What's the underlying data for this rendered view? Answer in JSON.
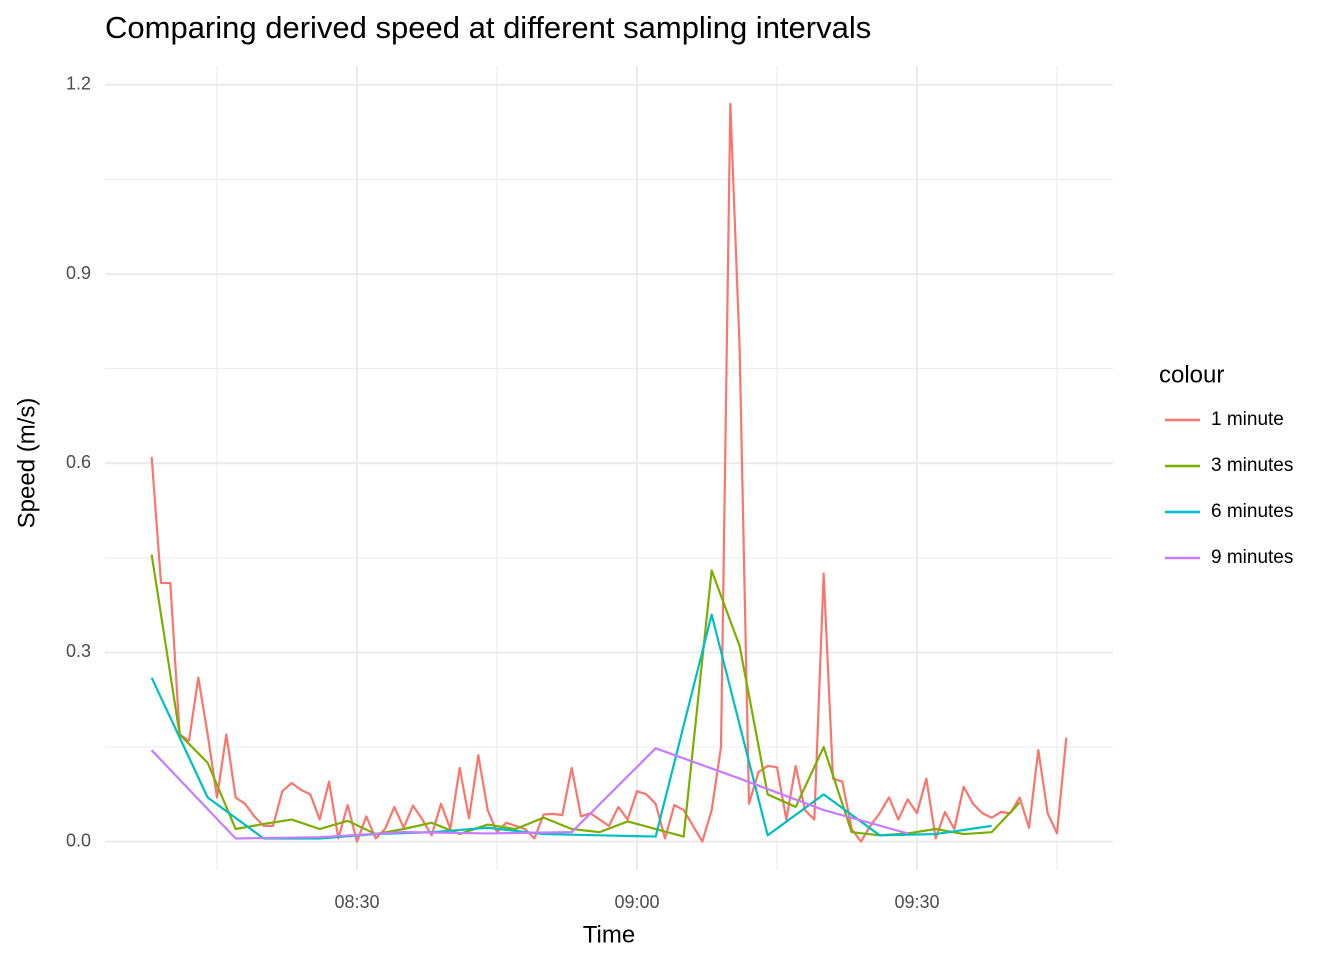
{
  "chart_data": {
    "type": "line",
    "title": "Comparing derived speed at different sampling intervals",
    "x_label": "Time",
    "y_label": "Speed (m/s)",
    "legend_title": "colour",
    "legend": "right",
    "grid": true,
    "xlim": [
      "08:03",
      "09:51"
    ],
    "xticks": [
      "08:30",
      "09:00",
      "09:30"
    ],
    "ylim": [
      -0.045,
      1.23
    ],
    "yticks": [
      {
        "value": 0,
        "label": "0.0"
      },
      0.3,
      0.6,
      0.9,
      1.2
    ],
    "series": [
      {
        "name": "1 minute",
        "color": "#f8766d",
        "x": [
          "08:08",
          "08:09",
          "08:10",
          "08:11",
          "08:12",
          "08:13",
          "08:14",
          "08:15",
          "08:16",
          "08:17",
          "08:18",
          "08:19",
          "08:20",
          "08:21",
          "08:22",
          "08:23",
          "08:24",
          "08:25",
          "08:26",
          "08:27",
          "08:28",
          "08:29",
          "08:30",
          "08:31",
          "08:32",
          "08:33",
          "08:34",
          "08:35",
          "08:36",
          "08:37",
          "08:38",
          "08:39",
          "08:40",
          "08:41",
          "08:42",
          "08:43",
          "08:44",
          "08:45",
          "08:46",
          "08:47",
          "08:48",
          "08:49",
          "08:50",
          "08:51",
          "08:52",
          "08:53",
          "08:54",
          "08:55",
          "08:56",
          "08:57",
          "08:58",
          "08:59",
          "09:00",
          "09:01",
          "09:02",
          "09:03",
          "09:04",
          "09:05",
          "09:06",
          "09:07",
          "09:08",
          "09:09",
          "09:10",
          "09:11",
          "09:12",
          "09:13",
          "09:14",
          "09:15",
          "09:16",
          "09:17",
          "09:18",
          "09:19",
          "09:20",
          "09:21",
          "09:22",
          "09:23",
          "09:24",
          "09:25",
          "09:26",
          "09:27",
          "09:28",
          "09:29",
          "09:30",
          "09:31",
          "09:32",
          "09:33",
          "09:34",
          "09:35",
          "09:36",
          "09:37",
          "09:38",
          "09:39",
          "09:40",
          "09:41",
          "09:42",
          "09:43",
          "09:44",
          "09:45",
          "09:46"
        ],
        "values": [
          0.61,
          0.41,
          0.41,
          0.17,
          0.16,
          0.26,
          0.17,
          0.07,
          0.17,
          0.07,
          0.06,
          0.04,
          0.025,
          0.025,
          0.08,
          0.093,
          0.082,
          0.075,
          0.035,
          0.095,
          0.005,
          0.058,
          0.0,
          0.04,
          0.005,
          0.02,
          0.055,
          0.022,
          0.057,
          0.035,
          0.01,
          0.06,
          0.02,
          0.117,
          0.037,
          0.137,
          0.05,
          0.015,
          0.03,
          0.025,
          0.02,
          0.005,
          0.043,
          0.044,
          0.042,
          0.117,
          0.04,
          0.045,
          0.035,
          0.025,
          0.055,
          0.035,
          0.08,
          0.075,
          0.06,
          0.005,
          0.058,
          0.05,
          0.025,
          0.0,
          0.05,
          0.15,
          1.17,
          0.78,
          0.06,
          0.11,
          0.12,
          0.118,
          0.035,
          0.12,
          0.05,
          0.035,
          0.425,
          0.1,
          0.095,
          0.02,
          0.0,
          0.025,
          0.045,
          0.07,
          0.035,
          0.067,
          0.045,
          0.1,
          0.005,
          0.047,
          0.02,
          0.087,
          0.06,
          0.045,
          0.038,
          0.047,
          0.045,
          0.07,
          0.022,
          0.145,
          0.045,
          0.013,
          0.165
        ]
      },
      {
        "name": "3 minutes",
        "color": "#7cae00",
        "x": [
          "08:08",
          "08:11",
          "08:14",
          "08:17",
          "08:20",
          "08:23",
          "08:26",
          "08:29",
          "08:32",
          "08:35",
          "08:38",
          "08:41",
          "08:44",
          "08:47",
          "08:50",
          "08:53",
          "08:56",
          "08:59",
          "09:02",
          "09:05",
          "09:08",
          "09:11",
          "09:14",
          "09:17",
          "09:20",
          "09:23",
          "09:26",
          "09:29",
          "09:32",
          "09:35",
          "09:38",
          "09:41"
        ],
        "values": [
          0.455,
          0.17,
          0.125,
          0.02,
          0.028,
          0.035,
          0.02,
          0.033,
          0.012,
          0.02,
          0.03,
          0.012,
          0.027,
          0.02,
          0.038,
          0.02,
          0.015,
          0.032,
          0.02,
          0.008,
          0.43,
          0.31,
          0.075,
          0.055,
          0.15,
          0.015,
          0.01,
          0.013,
          0.02,
          0.012,
          0.015,
          0.062
        ]
      },
      {
        "name": "6 minutes",
        "color": "#00bfc4",
        "x": [
          "08:08",
          "08:14",
          "08:20",
          "08:26",
          "08:32",
          "08:38",
          "08:44",
          "08:50",
          "08:56",
          "09:02",
          "09:08",
          "09:14",
          "09:20",
          "09:26",
          "09:32",
          "09:38"
        ],
        "values": [
          0.26,
          0.07,
          0.005,
          0.005,
          0.012,
          0.015,
          0.022,
          0.012,
          0.01,
          0.008,
          0.36,
          0.01,
          0.075,
          0.01,
          0.012,
          0.025
        ]
      },
      {
        "name": "9 minutes",
        "color": "#c77cff",
        "x": [
          "08:08",
          "08:17",
          "08:26",
          "08:35",
          "08:44",
          "08:53",
          "09:02",
          "09:11",
          "09:20",
          "09:29"
        ],
        "values": [
          0.145,
          0.005,
          0.007,
          0.015,
          0.013,
          0.015,
          0.148,
          0.1,
          0.05,
          0.013
        ]
      }
    ]
  }
}
